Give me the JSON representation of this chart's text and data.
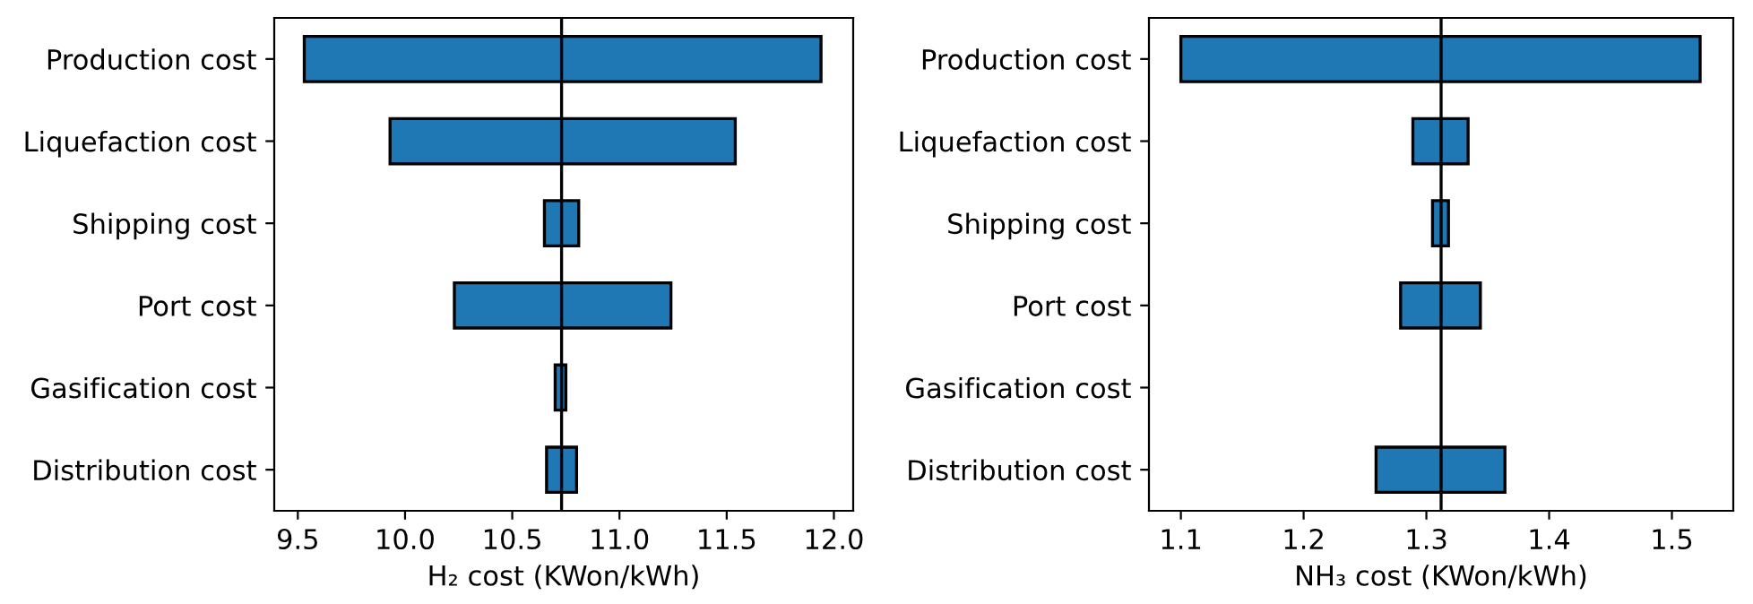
{
  "chart_data": [
    {
      "type": "bar",
      "orientation": "horizontal",
      "xlabel": "H₂ cost (KWon/kWh)",
      "categories": [
        "Production cost",
        "Liquefaction cost",
        "Shipping cost",
        "Port cost",
        "Gasification cost",
        "Distribution cost"
      ],
      "base": [
        9.53,
        9.93,
        10.65,
        10.23,
        10.7,
        10.66
      ],
      "values": [
        2.41,
        1.61,
        0.16,
        1.01,
        0.05,
        0.14
      ],
      "color": "#1f77b4",
      "xlim": [
        9.39,
        12.09
      ],
      "xticks": [
        {
          "value": 9.5,
          "label": "9.5"
        },
        {
          "value": 10.0,
          "label": "10.0"
        },
        {
          "value": 10.5,
          "label": "10.5"
        },
        {
          "value": 11.0,
          "label": "11.0"
        },
        {
          "value": 11.5,
          "label": "11.5"
        },
        {
          "value": 12.0,
          "label": "12.0"
        }
      ],
      "ref_lines": [
        {
          "axis": "x",
          "value": 10.73,
          "color": "#000000"
        }
      ],
      "grid": false,
      "legend": false
    },
    {
      "type": "bar",
      "orientation": "horizontal",
      "xlabel": "NH₃ cost (KWon/kWh)",
      "categories": [
        "Production cost",
        "Liquefaction cost",
        "Shipping cost",
        "Port cost",
        "Gasification cost",
        "Distribution cost"
      ],
      "base": [
        1.1,
        1.289,
        1.305,
        1.279,
        null,
        1.259
      ],
      "values": [
        0.423,
        0.045,
        0.013,
        0.065,
        null,
        0.105
      ],
      "color": "#1f77b4",
      "xlim": [
        1.074,
        1.55
      ],
      "xticks": [
        1.1,
        1.2,
        1.3,
        1.4,
        1.5
      ],
      "ref_lines": [
        {
          "axis": "x",
          "value": 1.312,
          "color": "#000000"
        }
      ],
      "grid": false,
      "legend": false
    }
  ]
}
